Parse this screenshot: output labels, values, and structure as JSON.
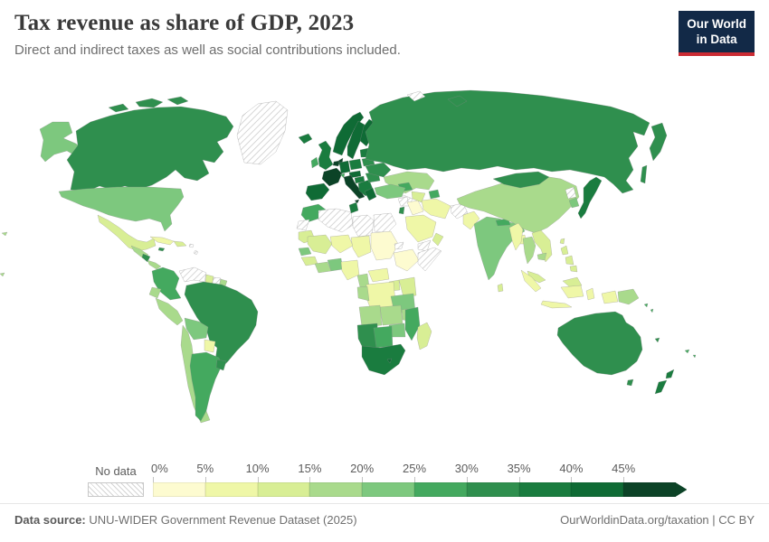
{
  "header": {
    "title": "Tax revenue as share of GDP, 2023",
    "subtitle": "Direct and indirect taxes as well as social contributions included.",
    "logo": {
      "line1": "Our World",
      "line2": "in Data",
      "bg_color": "#122947",
      "accent_color": "#cb2b33"
    }
  },
  "legend": {
    "no_data_label": "No data",
    "ticks": [
      "0%",
      "5%",
      "10%",
      "15%",
      "20%",
      "25%",
      "30%",
      "35%",
      "40%",
      "45%"
    ]
  },
  "footer": {
    "source_label": "Data source:",
    "source_text": " UNU-WIDER Government Revenue Dataset (2025)",
    "right_text": "OurWorldinData.org/taxation | CC BY"
  },
  "chart_data": {
    "type": "choropleth",
    "title": "Tax revenue as share of GDP",
    "year": 2023,
    "unit": "% of GDP",
    "bins": [
      "0-5%",
      "5-10%",
      "10-15%",
      "15-20%",
      "20-25%",
      "25-30%",
      "30-35%",
      "35-40%",
      "40-45%",
      "45%+"
    ],
    "palette": [
      "#fdfbd0",
      "#eff7a7",
      "#d8ee95",
      "#a9da8c",
      "#7dc87e",
      "#44a95f",
      "#2f8f4e",
      "#1a7c3f",
      "#0f6b35",
      "#0c4327"
    ],
    "no_data": {
      "label": "No data",
      "pattern": "diagonal-hatch",
      "color": "#cccccc"
    },
    "legend_position": "bottom",
    "regions": [
      {
        "id": "usa",
        "name": "United States",
        "bucket": 5
      },
      {
        "id": "canada",
        "name": "Canada",
        "bucket": 7
      },
      {
        "id": "greenland",
        "name": "Greenland",
        "bucket": 0
      },
      {
        "id": "mexico",
        "name": "Mexico",
        "bucket": 3
      },
      {
        "id": "guatemala-honduras",
        "name": "Guatemala & Honduras",
        "bucket": 4
      },
      {
        "id": "nicaragua",
        "name": "Nicaragua",
        "bucket": 7
      },
      {
        "id": "costa-rica-panama",
        "name": "Costa Rica & Panama",
        "bucket": 4
      },
      {
        "id": "cuba",
        "name": "Cuba",
        "bucket": 2
      },
      {
        "id": "jamaica",
        "name": "Jamaica",
        "bucket": 7
      },
      {
        "id": "hispaniola",
        "name": "Haiti & Dominican Republic",
        "bucket": 3
      },
      {
        "id": "lesser-antilles",
        "name": "Lesser Antilles",
        "bucket": 0
      },
      {
        "id": "colombia",
        "name": "Colombia",
        "bucket": 6
      },
      {
        "id": "venezuela",
        "name": "Venezuela",
        "bucket": 0
      },
      {
        "id": "guyana",
        "name": "Guyana",
        "bucket": 3
      },
      {
        "id": "suriname",
        "name": "Suriname",
        "bucket": 0
      },
      {
        "id": "french-guiana",
        "name": "French Guiana",
        "bucket": 4
      },
      {
        "id": "brazil",
        "name": "Brazil",
        "bucket": 7
      },
      {
        "id": "ecuador",
        "name": "Ecuador",
        "bucket": 4
      },
      {
        "id": "peru",
        "name": "Peru",
        "bucket": 4
      },
      {
        "id": "bolivia",
        "name": "Bolivia",
        "bucket": 5
      },
      {
        "id": "paraguay",
        "name": "Paraguay",
        "bucket": 2
      },
      {
        "id": "chile",
        "name": "Chile",
        "bucket": 4
      },
      {
        "id": "argentina",
        "name": "Argentina",
        "bucket": 6
      },
      {
        "id": "uruguay",
        "name": "Uruguay",
        "bucket": 7
      },
      {
        "id": "iceland",
        "name": "Iceland",
        "bucket": 8
      },
      {
        "id": "united-kingdom",
        "name": "United Kingdom",
        "bucket": 8
      },
      {
        "id": "ireland",
        "name": "Ireland",
        "bucket": 6
      },
      {
        "id": "norway",
        "name": "Norway",
        "bucket": 9
      },
      {
        "id": "sweden",
        "name": "Sweden",
        "bucket": 9
      },
      {
        "id": "finland",
        "name": "Finland",
        "bucket": 9
      },
      {
        "id": "denmark",
        "name": "Denmark",
        "bucket": 10
      },
      {
        "id": "baltics",
        "name": "Baltic states",
        "bucket": 8
      },
      {
        "id": "belarus",
        "name": "Belarus",
        "bucket": 7
      },
      {
        "id": "poland",
        "name": "Poland",
        "bucket": 8
      },
      {
        "id": "germany",
        "name": "Germany",
        "bucket": 9
      },
      {
        "id": "benelux",
        "name": "Belgium & Netherlands",
        "bucket": 10
      },
      {
        "id": "france",
        "name": "France",
        "bucket": 10
      },
      {
        "id": "spain-portugal",
        "name": "Spain & Portugal",
        "bucket": 9
      },
      {
        "id": "italy",
        "name": "Italy",
        "bucket": 10
      },
      {
        "id": "switzerland",
        "name": "Switzerland",
        "bucket": 6
      },
      {
        "id": "austria-czechia",
        "name": "Austria & Czechia",
        "bucket": 9
      },
      {
        "id": "hungary-slovakia",
        "name": "Hungary & Slovakia",
        "bucket": 8
      },
      {
        "id": "balkans",
        "name": "Western Balkans",
        "bucket": 8
      },
      {
        "id": "greece",
        "name": "Greece",
        "bucket": 9
      },
      {
        "id": "romania-bulgaria",
        "name": "Romania & Bulgaria",
        "bucket": 7
      },
      {
        "id": "ukraine",
        "name": "Ukraine",
        "bucket": 7
      },
      {
        "id": "russia",
        "name": "Russia",
        "bucket": 7
      },
      {
        "id": "svalbard",
        "name": "Svalbard",
        "bucket": 0
      },
      {
        "id": "kazakhstan",
        "name": "Kazakhstan",
        "bucket": 4
      },
      {
        "id": "uzbekistan",
        "name": "Uzbekistan",
        "bucket": 3
      },
      {
        "id": "turkmenistan",
        "name": "Turkmenistan",
        "bucket": 0
      },
      {
        "id": "kyrgyzstan-tajikistan",
        "name": "Kyrgyzstan & Tajikistan",
        "bucket": 6
      },
      {
        "id": "caucasus",
        "name": "Caucasus",
        "bucket": 6
      },
      {
        "id": "turkey",
        "name": "Turkey",
        "bucket": 5
      },
      {
        "id": "syria",
        "name": "Syria",
        "bucket": 0
      },
      {
        "id": "iraq",
        "name": "Iraq",
        "bucket": 1
      },
      {
        "id": "iran",
        "name": "Iran",
        "bucket": 2
      },
      {
        "id": "saudi-arabia",
        "name": "Saudi Arabia",
        "bucket": 2
      },
      {
        "id": "yemen",
        "name": "Yemen",
        "bucket": 0
      },
      {
        "id": "oman",
        "name": "Oman",
        "bucket": 3
      },
      {
        "id": "israel-jordan",
        "name": "Israel & Jordan",
        "bucket": 7
      },
      {
        "id": "afghanistan",
        "name": "Afghanistan",
        "bucket": 0
      },
      {
        "id": "pakistan",
        "name": "Pakistan",
        "bucket": 2
      },
      {
        "id": "india",
        "name": "India",
        "bucket": 5
      },
      {
        "id": "bangladesh",
        "name": "Bangladesh",
        "bucket": 2
      },
      {
        "id": "sri-lanka",
        "name": "Sri Lanka",
        "bucket": 3
      },
      {
        "id": "nepal",
        "name": "Nepal",
        "bucket": 6
      },
      {
        "id": "china",
        "name": "China",
        "bucket": 4
      },
      {
        "id": "mongolia",
        "name": "Mongolia",
        "bucket": 7
      },
      {
        "id": "north-korea",
        "name": "North Korea",
        "bucket": 0
      },
      {
        "id": "south-korea",
        "name": "South Korea",
        "bucket": 5
      },
      {
        "id": "japan",
        "name": "Japan",
        "bucket": 8
      },
      {
        "id": "taiwan",
        "name": "Taiwan",
        "bucket": 3
      },
      {
        "id": "myanmar",
        "name": "Myanmar",
        "bucket": 2
      },
      {
        "id": "thailand",
        "name": "Thailand",
        "bucket": 4
      },
      {
        "id": "laos-vietnam",
        "name": "Laos & Vietnam",
        "bucket": 3
      },
      {
        "id": "cambodia",
        "name": "Cambodia",
        "bucket": 4
      },
      {
        "id": "malaysia",
        "name": "Malaysia",
        "bucket": 3
      },
      {
        "id": "indonesia",
        "name": "Indonesia",
        "bucket": 2
      },
      {
        "id": "papua-new-guinea",
        "name": "Papua New Guinea",
        "bucket": 4
      },
      {
        "id": "philippines",
        "name": "Philippines",
        "bucket": 3
      },
      {
        "id": "australia",
        "name": "Australia",
        "bucket": 7
      },
      {
        "id": "new-zealand",
        "name": "New Zealand",
        "bucket": 8
      },
      {
        "id": "fiji",
        "name": "Fiji",
        "bucket": 6
      },
      {
        "id": "solomon-islands",
        "name": "Solomon Islands",
        "bucket": 6
      },
      {
        "id": "new-caledonia",
        "name": "New Caledonia",
        "bucket": 7
      },
      {
        "id": "pacific-islands",
        "name": "Pacific islands",
        "bucket": 4
      },
      {
        "id": "morocco",
        "name": "Morocco",
        "bucket": 6
      },
      {
        "id": "western-sahara",
        "name": "Western Sahara",
        "bucket": 0
      },
      {
        "id": "algeria",
        "name": "Algeria",
        "bucket": 0
      },
      {
        "id": "libya",
        "name": "Libya",
        "bucket": 0
      },
      {
        "id": "egypt",
        "name": "Egypt",
        "bucket": 0
      },
      {
        "id": "tunisia",
        "name": "Tunisia",
        "bucket": 8
      },
      {
        "id": "mauritania",
        "name": "Mauritania",
        "bucket": 3
      },
      {
        "id": "mali",
        "name": "Mali",
        "bucket": 3
      },
      {
        "id": "niger",
        "name": "Niger",
        "bucket": 2
      },
      {
        "id": "chad",
        "name": "Chad",
        "bucket": 2
      },
      {
        "id": "sudan",
        "name": "Sudan",
        "bucket": 1
      },
      {
        "id": "eritrea",
        "name": "Eritrea",
        "bucket": 0
      },
      {
        "id": "ethiopia",
        "name": "Ethiopia",
        "bucket": 1
      },
      {
        "id": "somalia",
        "name": "Somalia",
        "bucket": 0
      },
      {
        "id": "senegal",
        "name": "Senegal",
        "bucket": 5
      },
      {
        "id": "guinea",
        "name": "Guinea",
        "bucket": 3
      },
      {
        "id": "cote-divoire-liberia",
        "name": "Côte d'Ivoire & Liberia",
        "bucket": 4
      },
      {
        "id": "ghana-benin",
        "name": "Ghana & Benin",
        "bucket": 5
      },
      {
        "id": "nigeria",
        "name": "Nigeria",
        "bucket": 2
      },
      {
        "id": "cameroon",
        "name": "Cameroon",
        "bucket": 4
      },
      {
        "id": "central-african-republic",
        "name": "Central African Republic",
        "bucket": 2
      },
      {
        "id": "uganda",
        "name": "Uganda",
        "bucket": 3
      },
      {
        "id": "kenya",
        "name": "Kenya",
        "bucket": 3
      },
      {
        "id": "dr-congo",
        "name": "DR Congo",
        "bucket": 2
      },
      {
        "id": "congo-gabon",
        "name": "Congo & Gabon",
        "bucket": 4
      },
      {
        "id": "tanzania",
        "name": "Tanzania",
        "bucket": 5
      },
      {
        "id": "angola",
        "name": "Angola",
        "bucket": 4
      },
      {
        "id": "zambia",
        "name": "Zambia",
        "bucket": 4
      },
      {
        "id": "malawi",
        "name": "Malawi",
        "bucket": 4
      },
      {
        "id": "mozambique",
        "name": "Mozambique",
        "bucket": 6
      },
      {
        "id": "zimbabwe",
        "name": "Zimbabwe",
        "bucket": 5
      },
      {
        "id": "namibia",
        "name": "Namibia",
        "bucket": 7
      },
      {
        "id": "botswana",
        "name": "Botswana",
        "bucket": 6
      },
      {
        "id": "south-africa",
        "name": "South Africa",
        "bucket": 8
      },
      {
        "id": "lesotho",
        "name": "Lesotho",
        "bucket": 9
      },
      {
        "id": "madagascar",
        "name": "Madagascar",
        "bucket": 3
      }
    ]
  }
}
